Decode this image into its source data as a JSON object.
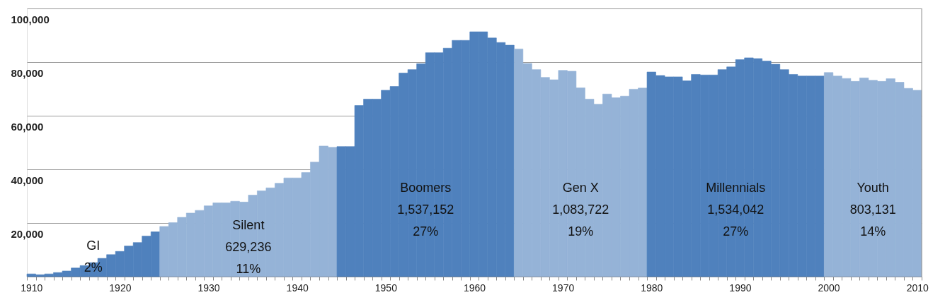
{
  "chart_data": {
    "type": "bar",
    "categories": [
      "1910",
      null,
      null,
      null,
      null,
      null,
      null,
      null,
      null,
      null,
      "1920",
      null,
      null,
      null,
      null,
      null,
      null,
      null,
      null,
      null,
      "1930",
      null,
      null,
      null,
      null,
      null,
      null,
      null,
      null,
      null,
      "1940",
      null,
      null,
      null,
      null,
      null,
      null,
      null,
      null,
      null,
      "1950",
      null,
      null,
      null,
      null,
      null,
      null,
      null,
      null,
      null,
      "1960",
      null,
      null,
      null,
      null,
      null,
      null,
      null,
      null,
      null,
      "1970",
      null,
      null,
      null,
      null,
      null,
      null,
      null,
      null,
      null,
      "1980",
      null,
      null,
      null,
      null,
      null,
      null,
      null,
      null,
      null,
      "1990",
      null,
      null,
      null,
      null,
      null,
      null,
      null,
      null,
      null,
      "2000",
      null,
      null,
      null,
      null,
      null,
      null,
      null,
      null,
      null,
      "2010"
    ],
    "values": [
      1000,
      700,
      1000,
      1500,
      2100,
      3200,
      4100,
      5200,
      6800,
      8200,
      9400,
      11400,
      12700,
      15100,
      16700,
      18700,
      20100,
      22100,
      23700,
      24700,
      26400,
      27500,
      27500,
      28100,
      27800,
      30400,
      32000,
      33100,
      34800,
      36800,
      36800,
      38800,
      42700,
      48700,
      48200,
      48500,
      48500,
      63800,
      66200,
      66200,
      69500,
      70900,
      75900,
      77200,
      79400,
      83500,
      83500,
      85200,
      88100,
      88100,
      91300,
      91300,
      89000,
      87300,
      86300,
      84900,
      79500,
      77200,
      74300,
      73400,
      76900,
      76600,
      70400,
      66200,
      64300,
      68100,
      66700,
      67300,
      69900,
      70300,
      76300,
      75000,
      74500,
      74500,
      73000,
      75400,
      75200,
      75200,
      77200,
      78200,
      80900,
      81600,
      81300,
      80400,
      79200,
      77200,
      75400,
      74800,
      74800,
      74800,
      76100,
      74800,
      73900,
      72800,
      74100,
      73200,
      72800,
      73800,
      72500,
      70200,
      69500
    ],
    "colors": [
      "#4f81bd",
      "#4f81bd",
      "#4f81bd",
      "#4f81bd",
      "#4f81bd",
      "#4f81bd",
      "#4f81bd",
      "#4f81bd",
      "#4f81bd",
      "#4f81bd",
      "#4f81bd",
      "#4f81bd",
      "#4f81bd",
      "#4f81bd",
      "#4f81bd",
      "#95b3d7",
      "#95b3d7",
      "#95b3d7",
      "#95b3d7",
      "#95b3d7",
      "#95b3d7",
      "#95b3d7",
      "#95b3d7",
      "#95b3d7",
      "#95b3d7",
      "#95b3d7",
      "#95b3d7",
      "#95b3d7",
      "#95b3d7",
      "#95b3d7",
      "#95b3d7",
      "#95b3d7",
      "#95b3d7",
      "#95b3d7",
      "#95b3d7",
      "#4f81bd",
      "#4f81bd",
      "#4f81bd",
      "#4f81bd",
      "#4f81bd",
      "#4f81bd",
      "#4f81bd",
      "#4f81bd",
      "#4f81bd",
      "#4f81bd",
      "#4f81bd",
      "#4f81bd",
      "#4f81bd",
      "#4f81bd",
      "#4f81bd",
      "#4f81bd",
      "#4f81bd",
      "#4f81bd",
      "#4f81bd",
      "#4f81bd",
      "#95b3d7",
      "#95b3d7",
      "#95b3d7",
      "#95b3d7",
      "#95b3d7",
      "#95b3d7",
      "#95b3d7",
      "#95b3d7",
      "#95b3d7",
      "#95b3d7",
      "#95b3d7",
      "#95b3d7",
      "#95b3d7",
      "#95b3d7",
      "#95b3d7",
      "#4f81bd",
      "#4f81bd",
      "#4f81bd",
      "#4f81bd",
      "#4f81bd",
      "#4f81bd",
      "#4f81bd",
      "#4f81bd",
      "#4f81bd",
      "#4f81bd",
      "#4f81bd",
      "#4f81bd",
      "#4f81bd",
      "#4f81bd",
      "#4f81bd",
      "#4f81bd",
      "#4f81bd",
      "#4f81bd",
      "#4f81bd",
      "#4f81bd",
      "#95b3d7",
      "#95b3d7",
      "#95b3d7",
      "#95b3d7",
      "#95b3d7",
      "#95b3d7",
      "#95b3d7",
      "#95b3d7",
      "#95b3d7",
      "#95b3d7",
      "#95b3d7"
    ],
    "ylim": [
      0,
      100000
    ],
    "yticks": [
      {
        "value": 20000,
        "label": "20,000"
      },
      {
        "value": 40000,
        "label": "40,000"
      },
      {
        "value": 60000,
        "label": "60,000"
      },
      {
        "value": 80000,
        "label": "80,000"
      },
      {
        "value": 100000,
        "label": "100,000"
      }
    ],
    "grid": "y",
    "annotations": [
      "GI\n2%",
      "Silent\n629,236\n11%",
      "Boomers\n1,537,152\n27%",
      "Gen X\n1,083,722\n19%",
      "Millennials\n1,534,042\n27%",
      "Youth\n803,131\n14%"
    ]
  }
}
